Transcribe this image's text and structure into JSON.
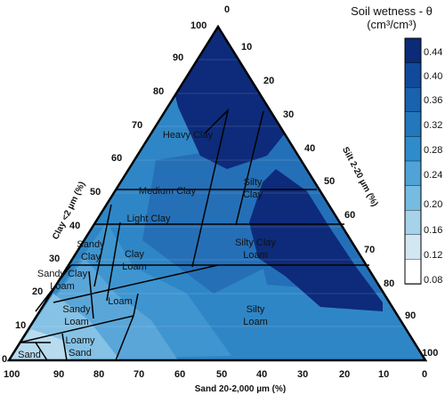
{
  "diagram": {
    "axes": {
      "clay_label": "Clay <2 µm (%)",
      "silt_label": "Silt 2-20 µm (%)",
      "sand_label": "Sand 20-2,000 µm (%)",
      "clay_ticks": [
        "100",
        "90",
        "80",
        "70",
        "60",
        "50",
        "40",
        "30",
        "20",
        "10",
        "0"
      ],
      "silt_ticks": [
        "0",
        "10",
        "20",
        "30",
        "40",
        "50",
        "60",
        "70",
        "80",
        "90",
        "100"
      ],
      "sand_ticks": [
        "100",
        "90",
        "80",
        "70",
        "60",
        "50",
        "40",
        "30",
        "20",
        "10",
        "0"
      ]
    },
    "regions": {
      "heavy_clay": "Heavy Clay",
      "medium_clay": "Medium Clay",
      "light_clay": "Light Clay",
      "silty_clay_1": "Silty",
      "silty_clay_2": "Clay",
      "sandy_clay_1": "Sandy",
      "sandy_clay_2": "Clay",
      "clay_loam_1": "Clay",
      "clay_loam_2": "Loam",
      "silty_clay_loam_1": "Silty Clay",
      "silty_clay_loam_2": "Loam",
      "sandy_clay_loam_1": "Sandy Clay",
      "sandy_clay_loam_2": "Loam",
      "loam": "Loam",
      "sandy_loam_1": "Sandy",
      "sandy_loam_2": "Loam",
      "silty_loam_1": "Silty",
      "silty_loam_2": "Loam",
      "loamy_sand_1": "Loamy",
      "loamy_sand_2": "Sand",
      "sand": "Sand"
    },
    "colorbar": {
      "title_line1": "Soil wetness - θ",
      "title_line2": "(cm³/cm³)",
      "ticks": [
        "0.44",
        "0.40",
        "0.36",
        "0.32",
        "0.28",
        "0.24",
        "0.20",
        "0.16",
        "0.12",
        "0.08"
      ],
      "colors": [
        "#0b2a78",
        "#114a9a",
        "#1962ad",
        "#2277bd",
        "#2e8ccb",
        "#4fa3d7",
        "#76bbe1",
        "#a6d2ea",
        "#d2e7f2",
        "#ffffff"
      ]
    }
  }
}
